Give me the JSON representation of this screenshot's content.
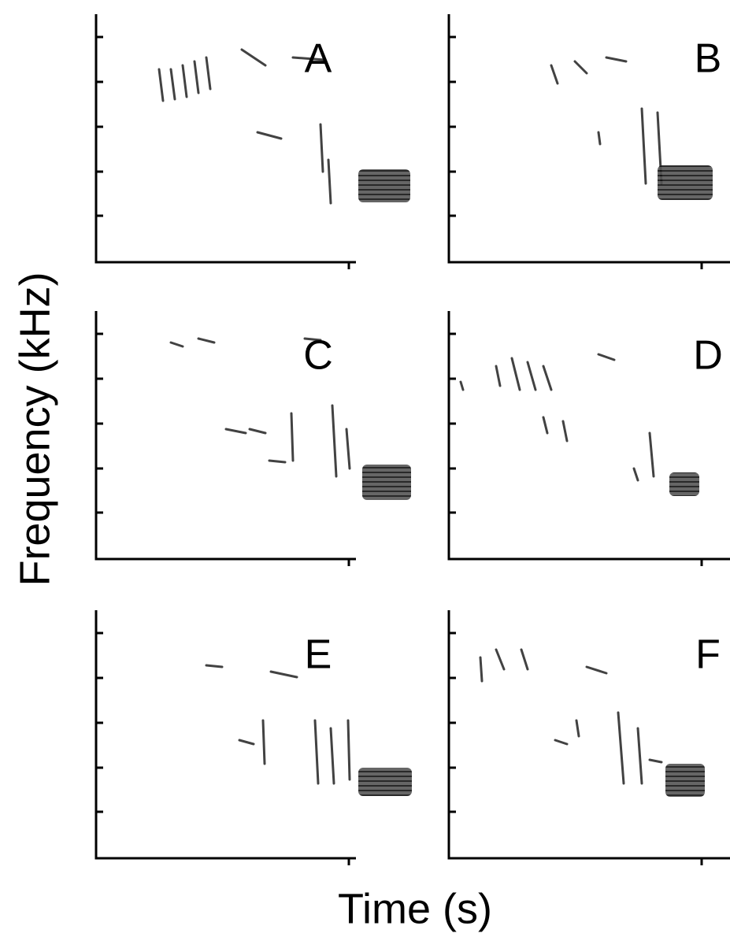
{
  "figure": {
    "y_label": "Frequency (kHz)",
    "x_label": "Time (s)",
    "panels": [
      {
        "label": "A"
      },
      {
        "label": "B"
      },
      {
        "label": "C"
      },
      {
        "label": "D"
      },
      {
        "label": "E"
      },
      {
        "label": "F"
      }
    ]
  }
}
